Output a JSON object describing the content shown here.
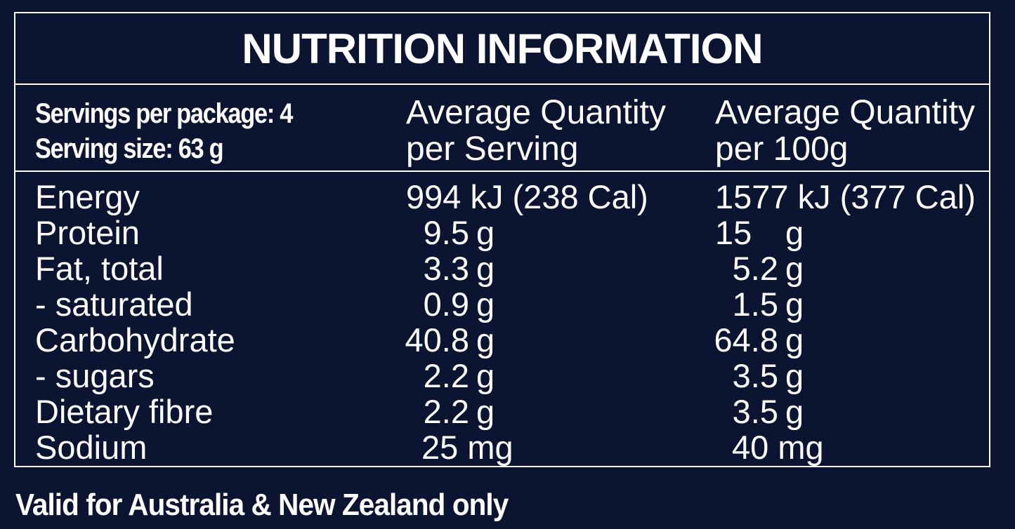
{
  "title": "NUTRITION INFORMATION",
  "servings_per_package": "Servings per package: 4",
  "serving_size": "Serving size: 63 g",
  "columns": {
    "per_serving_line1": "Average Quantity",
    "per_serving_line2": "per Serving",
    "per_100g_line1": "Average Quantity",
    "per_100g_line2": "per 100g"
  },
  "rows": [
    {
      "label": "Energy",
      "per_serving": "994 kJ (238 Cal)",
      "per_100g": "1577 kJ (377 Cal)"
    },
    {
      "label": "Protein",
      "per_serving": "9.5",
      "per_serving_unit": "g",
      "per_100g": "15",
      "per_100g_unit": "g"
    },
    {
      "label": "Fat, total",
      "per_serving": "3.3",
      "per_serving_unit": "g",
      "per_100g": "5.2",
      "per_100g_unit": "g"
    },
    {
      "label": "- saturated",
      "per_serving": "0.9",
      "per_serving_unit": "g",
      "per_100g": "1.5",
      "per_100g_unit": "g"
    },
    {
      "label": "Carbohydrate",
      "per_serving": "40.8",
      "per_serving_unit": "g",
      "per_100g": "64.8",
      "per_100g_unit": "g"
    },
    {
      "label": "- sugars",
      "per_serving": "2.2",
      "per_serving_unit": "g",
      "per_100g": "3.5",
      "per_100g_unit": "g"
    },
    {
      "label": "Dietary fibre",
      "per_serving": "2.2",
      "per_serving_unit": "g",
      "per_100g": "3.5",
      "per_100g_unit": "g"
    },
    {
      "label": "Sodium",
      "per_serving": "25 mg",
      "per_100g": "40 mg"
    }
  ],
  "footer": "Valid for Australia & New Zealand only",
  "colors": {
    "background": "#0b1430",
    "text": "#ffffff"
  }
}
